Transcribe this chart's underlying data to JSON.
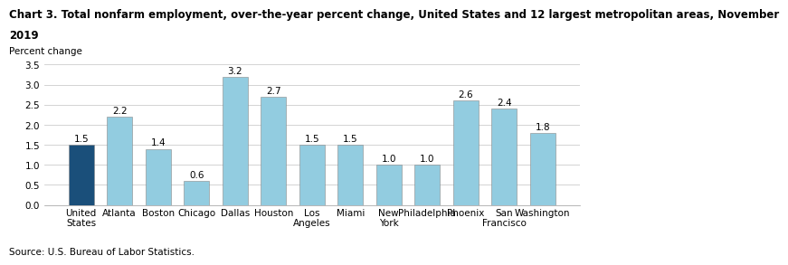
{
  "title_line1": "Chart 3. Total nonfarm employment, over-the-year percent change, United States and 12 largest metropolitan areas, November",
  "title_line2": "2019",
  "ylabel_text": "Percent change",
  "source": "Source: U.S. Bureau of Labor Statistics.",
  "categories": [
    "United\nStates",
    "Atlanta",
    "Boston",
    "Chicago",
    "Dallas",
    "Houston",
    "Los\nAngeles",
    "Miami",
    "New\nYork",
    "Philadelphia",
    "Phoenix",
    "San\nFrancisco",
    "Washington"
  ],
  "values": [
    1.5,
    2.2,
    1.4,
    0.6,
    3.2,
    2.7,
    1.5,
    1.5,
    1.0,
    1.0,
    2.6,
    2.4,
    1.8
  ],
  "bar_colors": [
    "#1a4f7a",
    "#92cce0",
    "#92cce0",
    "#92cce0",
    "#92cce0",
    "#92cce0",
    "#92cce0",
    "#92cce0",
    "#92cce0",
    "#92cce0",
    "#92cce0",
    "#92cce0",
    "#92cce0"
  ],
  "ylim": [
    0,
    3.5
  ],
  "yticks": [
    0.0,
    0.5,
    1.0,
    1.5,
    2.0,
    2.5,
    3.0,
    3.5
  ],
  "title_fontsize": 8.5,
  "bar_label_fontsize": 7.5,
  "tick_fontsize": 7.5,
  "ylabel_fontsize": 7.5,
  "source_fontsize": 7.5
}
